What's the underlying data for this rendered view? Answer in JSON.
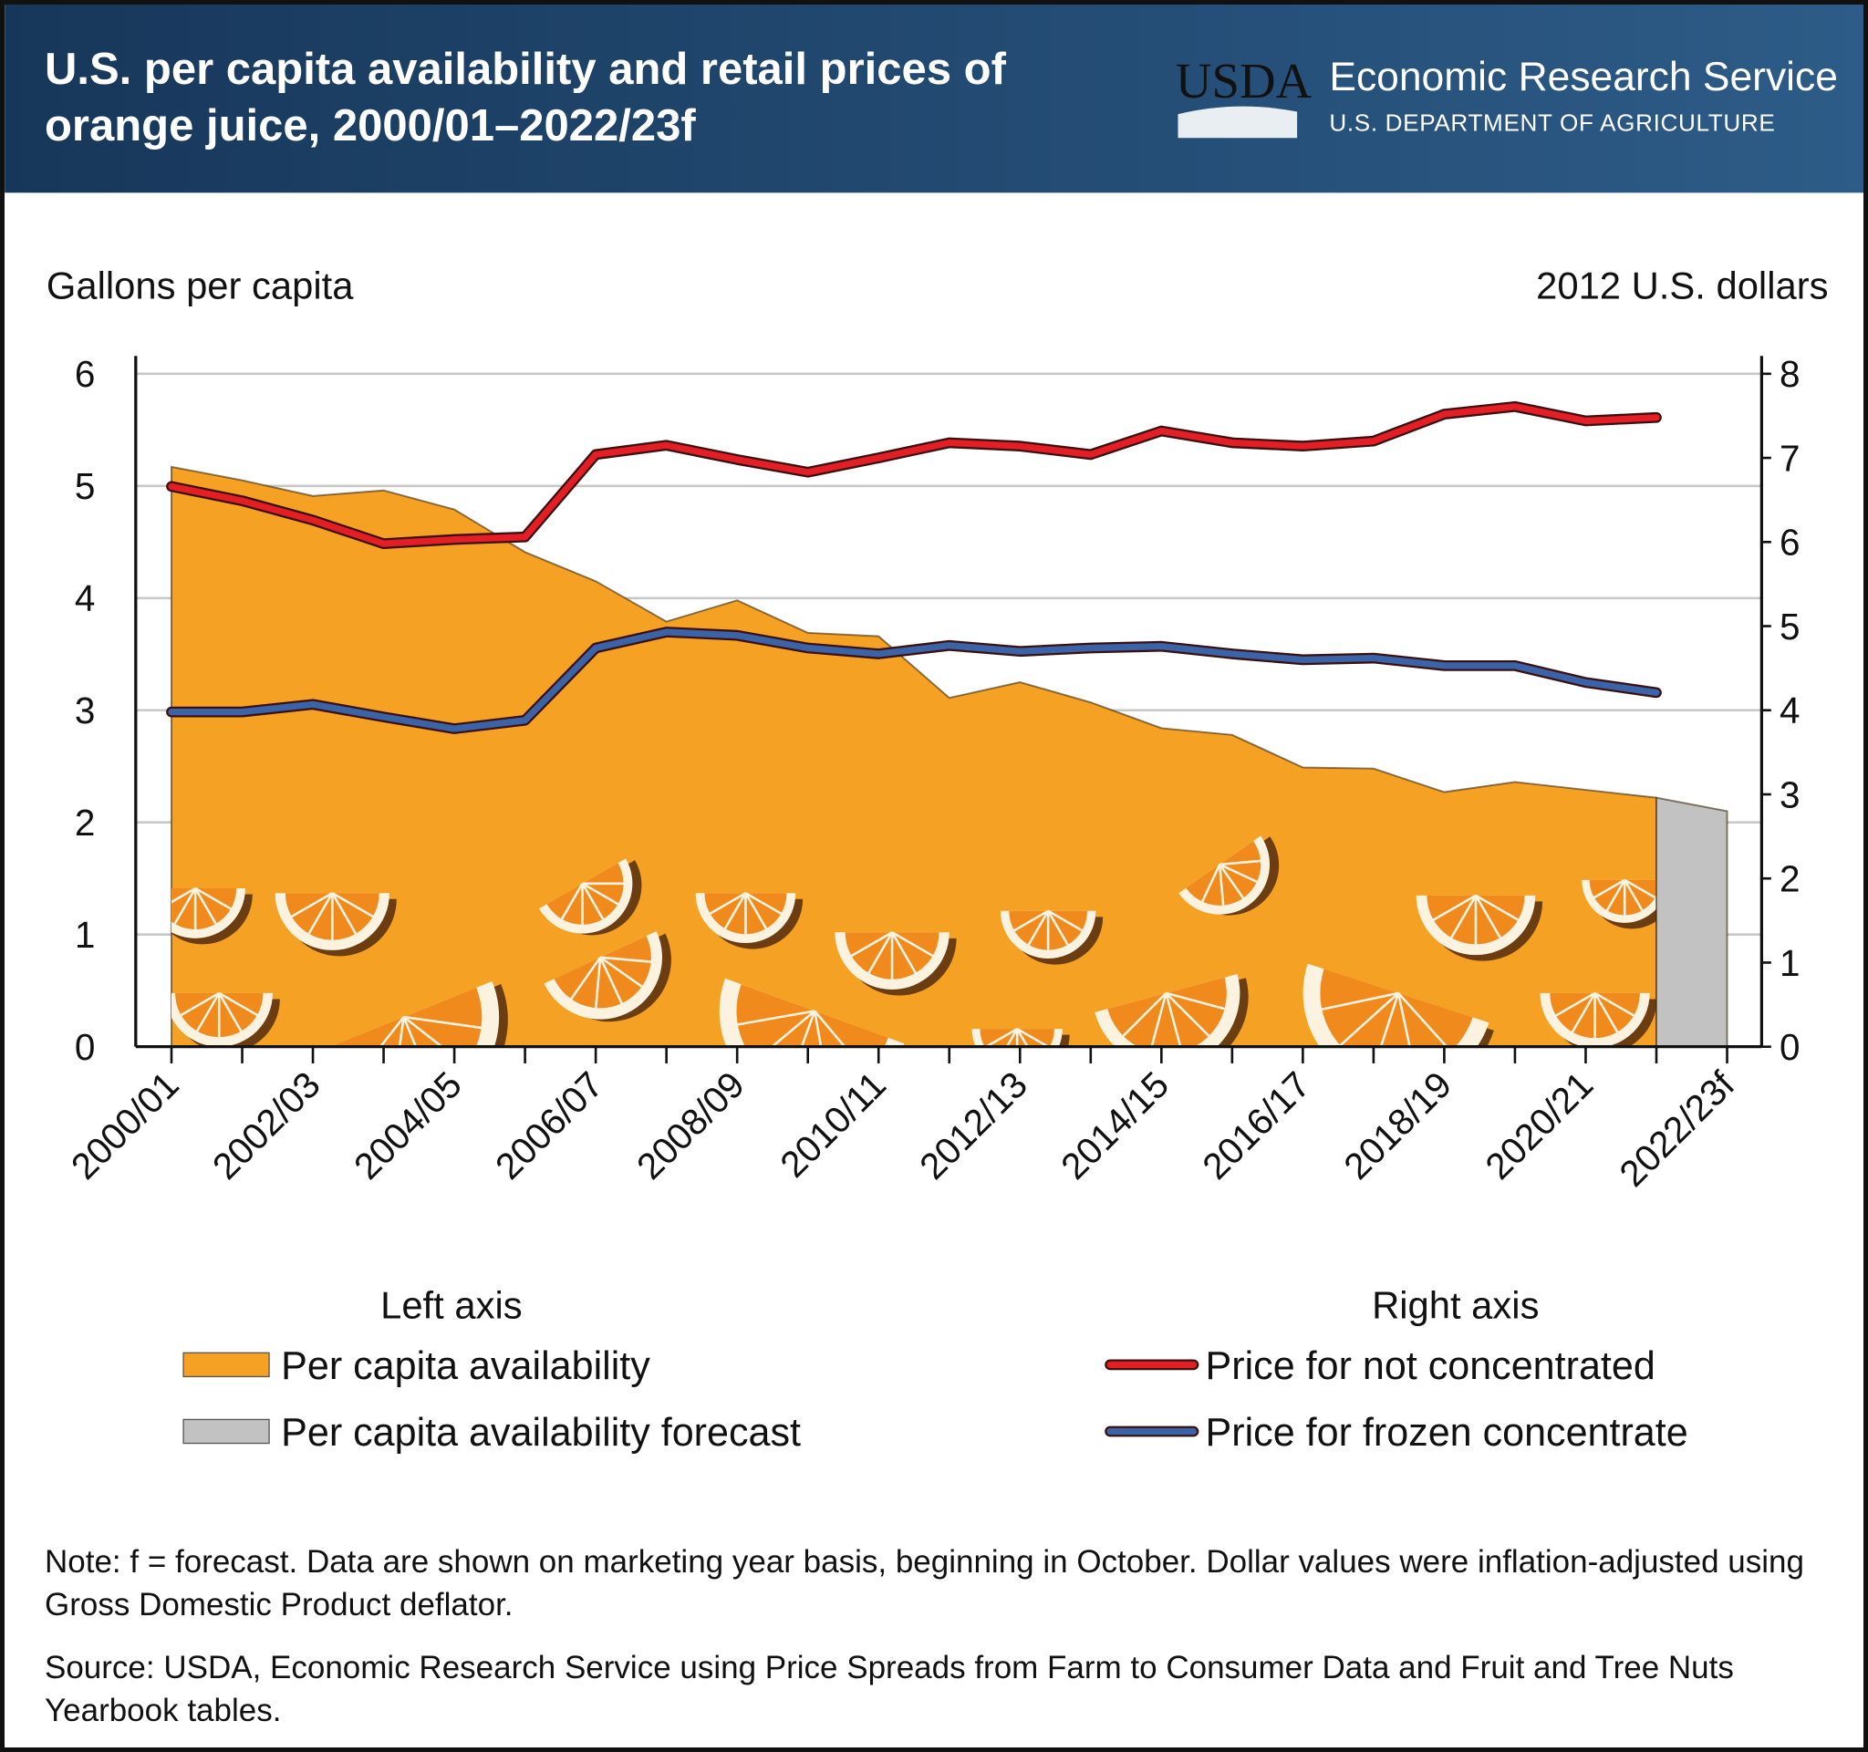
{
  "header": {
    "agency": "USDA",
    "service": "Economic Research Service",
    "department": "U.S. DEPARTMENT OF AGRICULTURE"
  },
  "chart_data": {
    "type": "line",
    "title": "U.S. per capita availability and retail prices of orange juice, 2000/01–2022/23f",
    "y_label": "Gallons per capita",
    "y2_label": "2012 U.S. dollars",
    "categories": [
      "2000/01",
      null,
      "2002/03",
      null,
      "2004/05",
      null,
      "2006/07",
      null,
      "2008/09",
      null,
      "2010/11",
      null,
      "2012/13",
      null,
      "2014/15",
      null,
      "2016/17",
      null,
      "2018/19",
      null,
      "2020/21",
      null,
      "2022/23f"
    ],
    "ylim": [
      0,
      6
    ],
    "yticks": [
      0,
      1,
      2,
      3,
      4,
      5,
      6
    ],
    "y2lim": [
      0,
      8
    ],
    "y2ticks": [
      0,
      1,
      2,
      3,
      4,
      5,
      6,
      7,
      8
    ],
    "grid": true,
    "legend": {
      "left_title": "Left axis",
      "right_title": "Right axis"
    },
    "series": [
      {
        "name": "Per capita availability",
        "type": "area",
        "color": "#f5a224",
        "axis": "y",
        "values": [
          5.17,
          5.05,
          4.91,
          4.96,
          4.79,
          4.41,
          4.15,
          3.79,
          3.98,
          3.69,
          3.66,
          3.11,
          3.25,
          3.07,
          2.84,
          2.78,
          2.49,
          2.48,
          2.27,
          2.36,
          2.29,
          2.22,
          null
        ]
      },
      {
        "name": "Per capita availability forecast",
        "type": "area",
        "color": "#c2c2c2",
        "axis": "y",
        "values": [
          null,
          null,
          null,
          null,
          null,
          null,
          null,
          null,
          null,
          null,
          null,
          null,
          null,
          null,
          null,
          null,
          null,
          null,
          null,
          null,
          null,
          2.22,
          2.1
        ]
      },
      {
        "name": "Price for not concentrated",
        "type": "line",
        "color": "#e31e24",
        "axis": "y2",
        "values": [
          6.66,
          6.49,
          6.26,
          5.98,
          6.03,
          6.06,
          7.04,
          7.15,
          6.98,
          6.83,
          7.0,
          7.18,
          7.14,
          7.04,
          7.32,
          7.18,
          7.14,
          7.2,
          7.52,
          7.61,
          7.44,
          7.48,
          null
        ]
      },
      {
        "name": "Price for frozen concentrate",
        "type": "line",
        "color": "#3b63a8",
        "axis": "y2",
        "values": [
          3.98,
          3.98,
          4.07,
          3.92,
          3.78,
          3.88,
          4.74,
          4.93,
          4.89,
          4.74,
          4.67,
          4.77,
          4.7,
          4.74,
          4.76,
          4.67,
          4.6,
          4.62,
          4.53,
          4.53,
          4.33,
          4.21,
          null
        ]
      }
    ],
    "note": "Note: f = forecast. Data are shown on marketing year basis, beginning in October. Dollar values were inflation-adjusted using Gross Domestic Product deflator.",
    "source": "Source: USDA, Economic Research Service using Price Spreads from Farm to Consumer Data and Fruit and Tree Nuts Yearbook tables."
  }
}
